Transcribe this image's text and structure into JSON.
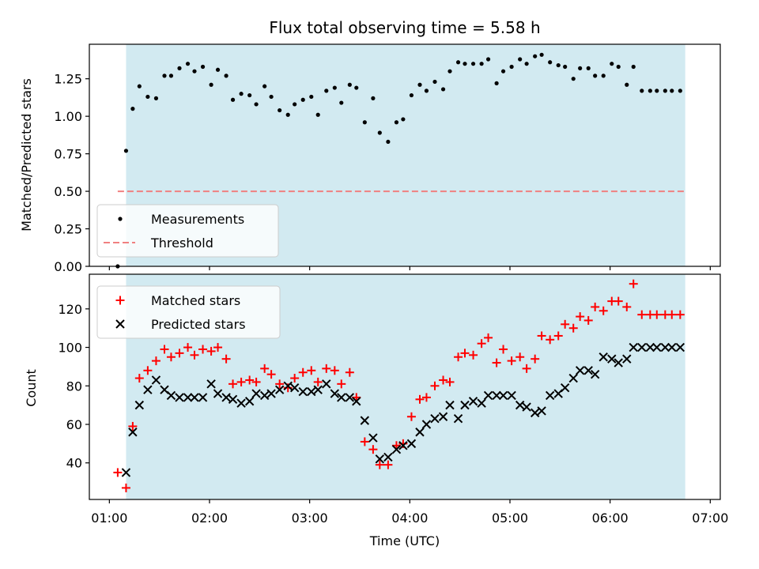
{
  "chart_data": [
    {
      "type": "scatter",
      "panel": "top",
      "title": "Flux total observing time = 5.58 h",
      "ylabel": "Matched/Predicted stars",
      "xlabel": "",
      "xlim": [
        "00:48",
        "07:06"
      ],
      "ylim": [
        0,
        1.48
      ],
      "yticks": [
        0.0,
        0.25,
        0.5,
        0.75,
        1.0,
        1.25
      ],
      "ytick_labels": [
        "0.00",
        "0.25",
        "0.50",
        "0.75",
        "1.00",
        "1.25"
      ],
      "xticks": [
        "01:00",
        "02:00",
        "03:00",
        "04:00",
        "05:00",
        "06:00",
        "07:00"
      ],
      "xtick_labels": [
        "",
        "",
        "",
        "",
        "",
        "",
        ""
      ],
      "shaded_span": {
        "start": "01:10",
        "end": "06:45",
        "color": "#add8e6"
      },
      "threshold": {
        "name": "Threshold",
        "value": 0.5,
        "start": "01:05",
        "end": "06:45",
        "color": "#f08080",
        "style": "dashed"
      },
      "legend": {
        "placement": "lower-left",
        "entries": [
          "Measurements",
          "Threshold"
        ]
      },
      "series": [
        {
          "name": "Measurements",
          "color": "#000000",
          "marker": "dot",
          "x": [
            "01:05",
            "01:10",
            "01:14",
            "01:18",
            "01:23",
            "01:28",
            "01:33",
            "01:37",
            "01:42",
            "01:47",
            "01:51",
            "01:56",
            "02:01",
            "02:05",
            "02:10",
            "02:14",
            "02:19",
            "02:24",
            "02:28",
            "02:33",
            "02:37",
            "02:42",
            "02:47",
            "02:51",
            "02:56",
            "03:01",
            "03:05",
            "03:10",
            "03:15",
            "03:19",
            "03:24",
            "03:28",
            "03:33",
            "03:38",
            "03:42",
            "03:47",
            "03:52",
            "03:56",
            "04:01",
            "04:06",
            "04:10",
            "04:15",
            "04:20",
            "04:24",
            "04:29",
            "04:33",
            "04:38",
            "04:43",
            "04:47",
            "04:52",
            "04:56",
            "05:01",
            "05:06",
            "05:10",
            "05:15",
            "05:19",
            "05:24",
            "05:29",
            "05:33",
            "05:38",
            "05:42",
            "05:47",
            "05:51",
            "05:56",
            "06:01",
            "06:05",
            "06:10",
            "06:14",
            "06:19",
            "06:24",
            "06:28",
            "06:33",
            "06:37",
            "06:42"
          ],
          "y": [
            0.0,
            0.77,
            1.05,
            1.2,
            1.13,
            1.12,
            1.27,
            1.27,
            1.32,
            1.35,
            1.3,
            1.33,
            1.21,
            1.31,
            1.27,
            1.11,
            1.15,
            1.14,
            1.08,
            1.2,
            1.13,
            1.04,
            1.01,
            1.08,
            1.11,
            1.13,
            1.01,
            1.17,
            1.19,
            1.09,
            1.21,
            1.19,
            0.96,
            1.12,
            0.89,
            0.83,
            0.96,
            0.98,
            1.14,
            1.21,
            1.17,
            1.23,
            1.18,
            1.3,
            1.36,
            1.35,
            1.35,
            1.35,
            1.38,
            1.22,
            1.3,
            1.33,
            1.38,
            1.35,
            1.4,
            1.41,
            1.36,
            1.34,
            1.33,
            1.25,
            1.32,
            1.32,
            1.27,
            1.27,
            1.35,
            1.33,
            1.21,
            1.33,
            1.17,
            1.17,
            1.17,
            1.17,
            1.17,
            1.17
          ]
        }
      ]
    },
    {
      "type": "scatter",
      "panel": "bottom",
      "title": "",
      "xlabel": "Time (UTC)",
      "ylabel": "Count",
      "xlim": [
        "00:48",
        "07:06"
      ],
      "ylim": [
        21,
        138
      ],
      "yticks": [
        40,
        60,
        80,
        100,
        120
      ],
      "ytick_labels": [
        "40",
        "60",
        "80",
        "100",
        "120"
      ],
      "xticks": [
        "01:00",
        "02:00",
        "03:00",
        "04:00",
        "05:00",
        "06:00",
        "07:00"
      ],
      "xtick_labels": [
        "01:00",
        "02:00",
        "03:00",
        "04:00",
        "05:00",
        "06:00",
        "07:00"
      ],
      "shaded_span": {
        "start": "01:10",
        "end": "06:45",
        "color": "#add8e6"
      },
      "legend": {
        "placement": "upper-left",
        "entries": [
          "Matched stars",
          "Predicted stars"
        ]
      },
      "series": [
        {
          "name": "Matched stars",
          "color": "#ff0000",
          "marker": "plus",
          "x": [
            "01:05",
            "01:10",
            "01:14",
            "01:18",
            "01:23",
            "01:28",
            "01:33",
            "01:37",
            "01:42",
            "01:47",
            "01:51",
            "01:56",
            "02:01",
            "02:05",
            "02:10",
            "02:14",
            "02:19",
            "02:24",
            "02:28",
            "02:33",
            "02:37",
            "02:42",
            "02:47",
            "02:51",
            "02:56",
            "03:01",
            "03:05",
            "03:10",
            "03:15",
            "03:19",
            "03:24",
            "03:28",
            "03:33",
            "03:38",
            "03:42",
            "03:47",
            "03:52",
            "03:56",
            "04:01",
            "04:06",
            "04:10",
            "04:15",
            "04:20",
            "04:24",
            "04:29",
            "04:33",
            "04:38",
            "04:43",
            "04:47",
            "04:52",
            "04:56",
            "05:01",
            "05:06",
            "05:10",
            "05:15",
            "05:19",
            "05:24",
            "05:29",
            "05:33",
            "05:38",
            "05:42",
            "05:47",
            "05:51",
            "05:56",
            "06:01",
            "06:05",
            "06:10",
            "06:14",
            "06:19",
            "06:24",
            "06:28",
            "06:33",
            "06:37",
            "06:42"
          ],
          "y": [
            35,
            27,
            59,
            84,
            88,
            93,
            99,
            95,
            97,
            100,
            96,
            99,
            98,
            100,
            94,
            81,
            82,
            83,
            82,
            89,
            86,
            81,
            79,
            84,
            87,
            88,
            82,
            89,
            88,
            81,
            87,
            74,
            51,
            47,
            39,
            39,
            49,
            50,
            64,
            73,
            74,
            80,
            83,
            82,
            95,
            97,
            96,
            102,
            105,
            92,
            99,
            93,
            95,
            89,
            94,
            106,
            104,
            106,
            112,
            110,
            116,
            114,
            121,
            119,
            124,
            124,
            121,
            133,
            117,
            117,
            117,
            117,
            117,
            117
          ]
        },
        {
          "name": "Predicted stars",
          "color": "#000000",
          "marker": "x",
          "x": [
            "01:10",
            "01:14",
            "01:18",
            "01:23",
            "01:28",
            "01:33",
            "01:37",
            "01:42",
            "01:47",
            "01:51",
            "01:56",
            "02:01",
            "02:05",
            "02:10",
            "02:14",
            "02:19",
            "02:24",
            "02:28",
            "02:33",
            "02:37",
            "02:42",
            "02:47",
            "02:51",
            "02:56",
            "03:01",
            "03:05",
            "03:10",
            "03:15",
            "03:19",
            "03:24",
            "03:28",
            "03:33",
            "03:38",
            "03:42",
            "03:47",
            "03:52",
            "03:56",
            "04:01",
            "04:06",
            "04:10",
            "04:15",
            "04:20",
            "04:24",
            "04:29",
            "04:33",
            "04:38",
            "04:43",
            "04:47",
            "04:52",
            "04:56",
            "05:01",
            "05:06",
            "05:10",
            "05:15",
            "05:19",
            "05:24",
            "05:29",
            "05:33",
            "05:38",
            "05:42",
            "05:47",
            "05:51",
            "05:56",
            "06:01",
            "06:05",
            "06:10",
            "06:14",
            "06:19",
            "06:24",
            "06:28",
            "06:33",
            "06:37",
            "06:42"
          ],
          "y": [
            35,
            56,
            70,
            78,
            83,
            78,
            75,
            74,
            74,
            74,
            74,
            81,
            76,
            74,
            73,
            71,
            72,
            76,
            75,
            76,
            78,
            80,
            79,
            77,
            77,
            78,
            81,
            76,
            74,
            74,
            72,
            62,
            53,
            42,
            43,
            47,
            49,
            50,
            56,
            60,
            63,
            64,
            70,
            63,
            70,
            72,
            71,
            75,
            75,
            75,
            75,
            70,
            69,
            66,
            67,
            75,
            76,
            79,
            84,
            88,
            88,
            86,
            95,
            94,
            92,
            94,
            100,
            100,
            100,
            100,
            100,
            100,
            100
          ]
        }
      ]
    }
  ]
}
